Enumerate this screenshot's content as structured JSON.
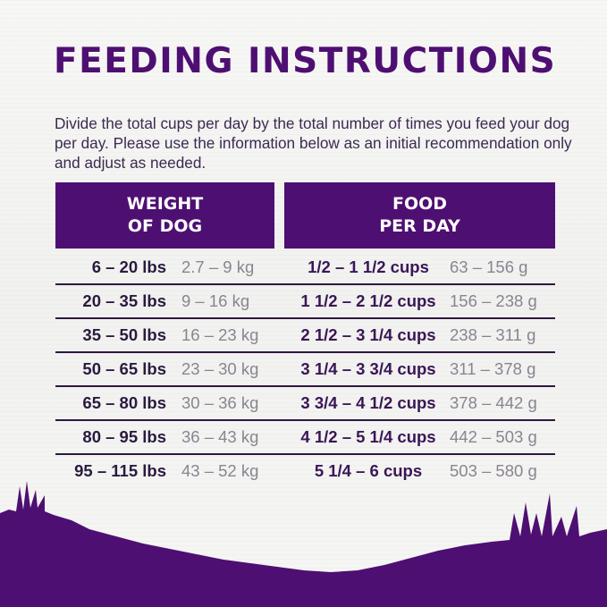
{
  "title": "FEEDING INSTRUCTIONS",
  "intro": "Divide the total cups per day by the total number of times you feed your dog per day. Please use the information below as an initial recommendation only and adjust as needed.",
  "table": {
    "headers": [
      {
        "line1": "WEIGHT",
        "line2": "OF DOG"
      },
      {
        "line1": "FOOD",
        "line2": "PER DAY"
      }
    ],
    "rows": [
      {
        "lbs": "6 – 20 lbs",
        "kg": "2.7 – 9 kg",
        "cups": "1/2 – 1 1/2 cups",
        "grams": "63 – 156 g"
      },
      {
        "lbs": "20 – 35 lbs",
        "kg": "9 – 16 kg",
        "cups": "1 1/2 – 2 1/2 cups",
        "grams": "156 – 238 g"
      },
      {
        "lbs": "35 – 50 lbs",
        "kg": "16 – 23 kg",
        "cups": "2 1/2 – 3 1/4 cups",
        "grams": "238 – 311 g"
      },
      {
        "lbs": "50 – 65 lbs",
        "kg": "23 – 30 kg",
        "cups": "3 1/4 – 3 3/4 cups",
        "grams": "311 – 378 g"
      },
      {
        "lbs": "65 – 80 lbs",
        "kg": "30 – 36 kg",
        "cups": "3 3/4 – 4 1/2 cups",
        "grams": "378 – 442 g"
      },
      {
        "lbs": "80 – 95 lbs",
        "kg": "36 – 43 kg",
        "cups": "4 1/2 – 5 1/4 cups",
        "grams": "442 – 503 g"
      },
      {
        "lbs": "95 – 115 lbs",
        "kg": "43 – 52 kg",
        "cups": "5 1/4 – 6 cups",
        "grams": "503 – 580 g"
      }
    ]
  },
  "colors": {
    "brand_purple": "#4e0f72",
    "text_dark": "#2a1a3e",
    "text_muted": "#8a8490"
  },
  "decoration": "grass-silhouette"
}
